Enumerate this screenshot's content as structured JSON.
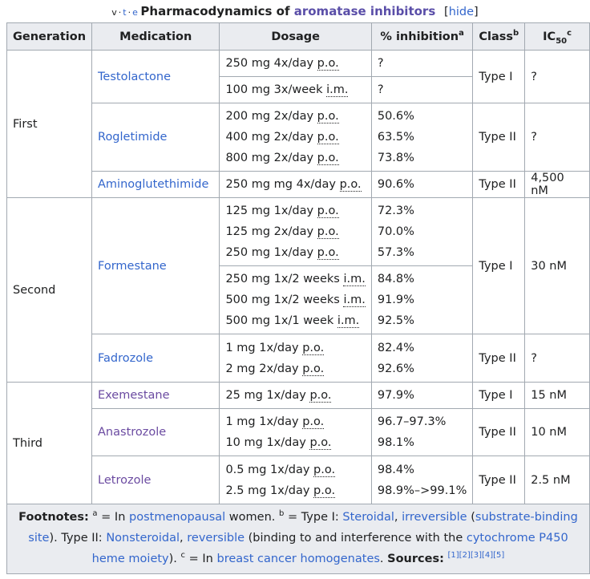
{
  "caption": {
    "v": "v",
    "t": "t",
    "e": "e",
    "title_prefix": "Pharmacodynamics of ",
    "title_link": "aromatase inhibitors",
    "hide_open": "[",
    "hide_label": "hide",
    "hide_close": "]"
  },
  "headers": {
    "generation": "Generation",
    "medication": "Medication",
    "dosage": "Dosage",
    "inhibition": "% inhibition",
    "inhibition_sup": "a",
    "class": "Class",
    "class_sup": "b",
    "ic50": "IC",
    "ic50_sub": "50",
    "ic50_sup": "c"
  },
  "rows": {
    "first": "First",
    "second": "Second",
    "third": "Third",
    "testolactone": {
      "name": "Testolactone",
      "d1a": "250 mg 4x/day ",
      "d1b": "p.o.",
      "i1": "?",
      "d2a": "100 mg 3x/week ",
      "d2b": "i.m.",
      "i2": "?",
      "cls": "Type I",
      "ic": "?"
    },
    "rogletimide": {
      "name": "Rogletimide",
      "d1a": "200 mg 2x/day ",
      "d2a": "400 mg 2x/day ",
      "d3a": "800 mg 2x/day ",
      "db": "p.o.",
      "i1": "50.6%",
      "i2": "63.5%",
      "i3": "73.8%",
      "cls": "Type II",
      "ic": "?"
    },
    "aminoglutethimide": {
      "name": "Aminoglutethimide",
      "da": "250 mg mg 4x/day ",
      "db": "p.o.",
      "i": "90.6%",
      "cls": "Type II",
      "ic": "4,500 nM"
    },
    "formestane": {
      "name": "Formestane",
      "d1a": "125 mg 1x/day ",
      "d2a": "125 mg 2x/day ",
      "d3a": "250 mg 1x/day ",
      "po": "p.o.",
      "i1": "72.3%",
      "i2": "70.0%",
      "i3": "57.3%",
      "d4a": "250 mg 1x/2 weeks ",
      "d5a": "500 mg 1x/2 weeks ",
      "d6a": "500 mg 1x/1 week ",
      "im": "i.m.",
      "i4": "84.8%",
      "i5": "91.9%",
      "i6": "92.5%",
      "cls": "Type I",
      "ic": "30 nM"
    },
    "fadrozole": {
      "name": "Fadrozole",
      "d1a": "1 mg 1x/day ",
      "d2a": "2 mg 2x/day ",
      "po": "p.o.",
      "i1": "82.4%",
      "i2": "92.6%",
      "cls": "Type II",
      "ic": "?"
    },
    "exemestane": {
      "name": "Exemestane",
      "da": "25 mg 1x/day ",
      "po": "p.o.",
      "i": "97.9%",
      "cls": "Type I",
      "ic": "15 nM"
    },
    "anastrozole": {
      "name": "Anastrozole",
      "d1a": "1 mg 1x/day ",
      "d2a": "10 mg 1x/day ",
      "po": "p.o.",
      "i1": "96.7–97.3%",
      "i2": "98.1%",
      "cls": "Type II",
      "ic": "10 nM"
    },
    "letrozole": {
      "name": "Letrozole",
      "d1a": "0.5 mg 1x/day ",
      "d2a": "2.5 mg 1x/day ",
      "po": "p.o.",
      "i1": "98.4%",
      "i2": "98.9%–>99.1%",
      "cls": "Type II",
      "ic": "2.5 nM"
    }
  },
  "footnotes": {
    "label": "Footnotes:",
    "a_sup": "a",
    "a_text1": " = In ",
    "a_link": "postmenopausal",
    "a_text2": " women. ",
    "b_sup": "b",
    "b_text1": " = Type I: ",
    "b_link1": "Steroidal",
    "comma1": ", ",
    "b_link2": "irreversible",
    "b_text2": " (",
    "b_link3": "substrate-binding site",
    "b_text3": "). Type II: ",
    "b_link4": "Nonsteroidal",
    "comma2": ", ",
    "b_link5": "reversible",
    "b_text4": " (binding to and interference with the ",
    "b_link6": "cytochrome P450 heme moiety",
    "b_text5": "). ",
    "c_sup": "c",
    "c_text1": " = In ",
    "c_link": "breast cancer homogenates",
    "c_text2": ". ",
    "sources_label": "Sources:",
    "refs": "[1][2][3][4][5]"
  },
  "colors": {
    "header_bg": "#eaecf0",
    "link": "#3366cc",
    "visited_link": "#6b4ba1",
    "border": "#a2a9b1"
  }
}
